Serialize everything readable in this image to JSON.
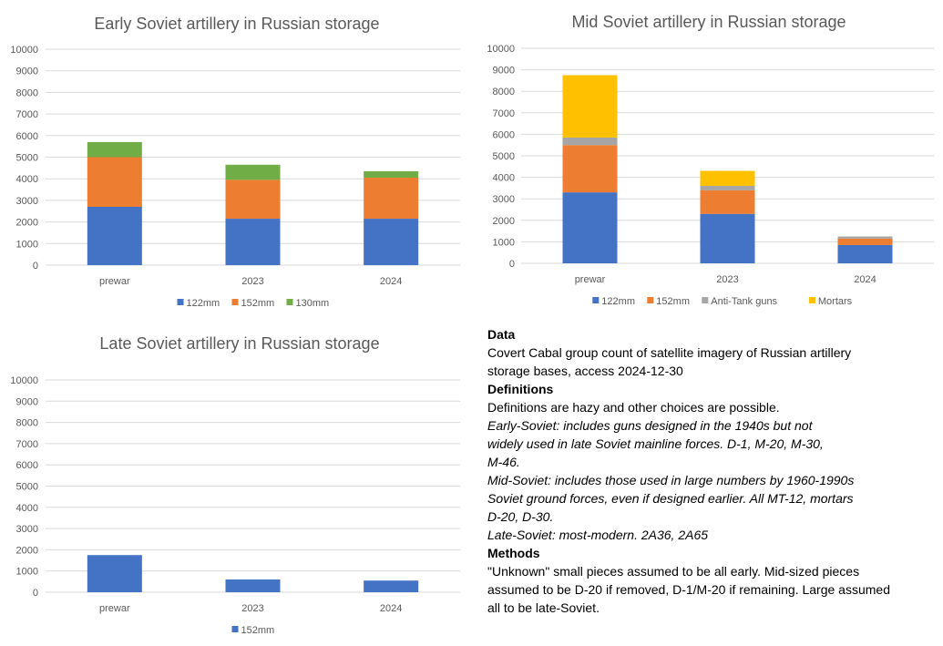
{
  "chart_data": [
    {
      "id": "early",
      "type": "bar",
      "stacked": true,
      "title": "Early Soviet artillery in Russian storage",
      "categories": [
        "prewar",
        "2023",
        "2024"
      ],
      "series": [
        {
          "name": "122mm",
          "color": "#4472C4",
          "values": [
            2700,
            2150,
            2150
          ]
        },
        {
          "name": "152mm",
          "color": "#ED7D31",
          "values": [
            2300,
            1800,
            1900
          ]
        },
        {
          "name": "130mm",
          "color": "#70AD47",
          "values": [
            700,
            700,
            300
          ]
        }
      ],
      "ylim": [
        0,
        10000
      ],
      "yticks": [
        "0",
        "1000",
        "2000",
        "3000",
        "4000",
        "5000",
        "6000",
        "7000",
        "8000",
        "9000",
        "10000"
      ],
      "legend_position": "bottom",
      "grid": true
    },
    {
      "id": "mid",
      "type": "bar",
      "stacked": true,
      "title": "Mid Soviet artillery in Russian storage",
      "categories": [
        "prewar",
        "2023",
        "2024"
      ],
      "series": [
        {
          "name": "122mm",
          "color": "#4472C4",
          "values": [
            3300,
            2300,
            850
          ]
        },
        {
          "name": "152mm",
          "color": "#ED7D31",
          "values": [
            2200,
            1100,
            300
          ]
        },
        {
          "name": "Anti-Tank guns",
          "color": "#A5A5A5",
          "values": [
            350,
            200,
            100
          ]
        },
        {
          "name": "Mortars",
          "color": "#FFC000",
          "values": [
            2900,
            700,
            0
          ]
        }
      ],
      "ylim": [
        0,
        10000
      ],
      "yticks": [
        "0",
        "1000",
        "2000",
        "3000",
        "4000",
        "5000",
        "6000",
        "7000",
        "8000",
        "9000",
        "10000"
      ],
      "legend_position": "bottom",
      "grid": true
    },
    {
      "id": "late",
      "type": "bar",
      "stacked": true,
      "title": "Late Soviet artillery in Russian storage",
      "categories": [
        "prewar",
        "2023",
        "2024"
      ],
      "series": [
        {
          "name": "152mm",
          "color": "#4472C4",
          "values": [
            1750,
            600,
            550
          ]
        }
      ],
      "ylim": [
        0,
        10000
      ],
      "yticks": [
        "0",
        "1000",
        "2000",
        "3000",
        "4000",
        "5000",
        "6000",
        "7000",
        "8000",
        "9000",
        "10000"
      ],
      "legend_position": "bottom",
      "grid": true
    }
  ],
  "notes": {
    "data_heading": "Data",
    "data_line1": "Covert Cabal group count of satellite imagery of Russian artillery",
    "data_line2": "storage bases, access 2024-12-30",
    "definitions_heading": "Definitions",
    "definitions_intro": "Definitions are hazy and other choices are possible.",
    "early_line1": "Early-Soviet: includes guns designed in the 1940s but not",
    "early_line2": "widely used in late Soviet mainline forces. D-1, M-20, M-30,",
    "early_line3": "M-46.",
    "mid_line1": "Mid-Soviet: includes those used in large numbers by 1960-1990s",
    "mid_line2": "Soviet ground forces, even if designed earlier. All MT-12, mortars",
    "mid_line3": "D-20, D-30.",
    "late_line1": "Late-Soviet: most-modern. 2A36, 2A65",
    "methods_heading": "Methods",
    "methods_line1": "\"Unknown\" small pieces assumed to be all early. Mid-sized pieces",
    "methods_line2": "assumed to be D-20 if removed, D-1/M-20 if remaining. Large assumed",
    "methods_line3": "all to be late-Soviet."
  }
}
